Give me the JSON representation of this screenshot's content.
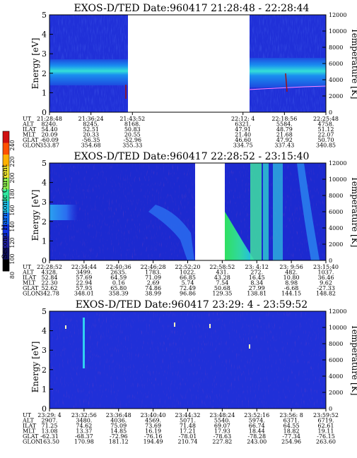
{
  "chart_data": [
    {
      "type": "heatmap",
      "title": "EXOS-D/TED    Date:960417  21:28:48 - 22:28:44",
      "ylabel": "Energy [eV]",
      "y2label": "Temperature [K]",
      "ylim": [
        0,
        5
      ],
      "yticks": [
        "0",
        "1",
        "2",
        "3",
        "4",
        "5"
      ],
      "y2lim": [
        0,
        12000
      ],
      "y2ticks": [
        "0",
        "2000",
        "4000",
        "6000",
        "8000",
        "10000",
        "12000"
      ],
      "data_gap": [
        0.385,
        0.7
      ],
      "emission_band": {
        "center_ev": 2.1,
        "half_width_ev": 0.5
      },
      "ephemeris": {
        "row_labels": [
          "UT",
          "ALT",
          "ILAT",
          "MLT",
          "GLAT",
          "GLON"
        ],
        "columns": [
          {
            "pos": 0.0,
            "values": [
              "21:28:48",
              "8240.",
              "54.40",
              "20.09",
              "-60.09",
              "353.87"
            ]
          },
          {
            "pos": 0.15,
            "values": [
              "21:36:24",
              "8245.",
              "52.51",
              "20.33",
              "-56.35",
              "354.68"
            ]
          },
          {
            "pos": 0.3,
            "values": [
              "21:43:52",
              "8168.",
              "50.83",
              "20.55",
              "-52.96",
              "355.33"
            ]
          },
          {
            "pos": 0.7,
            "values": [
              "22:12: 4",
              "6321.",
              "47.91",
              "21.40",
              "46.60",
              "334.75"
            ]
          },
          {
            "pos": 0.85,
            "values": [
              "22:18:56",
              "5584.",
              "48.79",
              "21.68",
              "47.92",
              "337.43"
            ]
          },
          {
            "pos": 1.0,
            "values": [
              "22:25:48",
              "4758.",
              "51.12",
              "22.07",
              "50.70",
              "340.85"
            ]
          }
        ]
      }
    },
    {
      "type": "heatmap",
      "title": "EXOS-D/TED    Date:960417  22:28:52 - 23:15:40",
      "ylabel": "Energy [eV]",
      "y2label": "Temperature [K]",
      "ylim": [
        0,
        5
      ],
      "yticks": [
        "0",
        "1",
        "2",
        "3",
        "4",
        "5"
      ],
      "y2lim": [
        0,
        12000
      ],
      "y2ticks": [
        "0",
        "2000",
        "4000",
        "6000",
        "8000",
        "10000",
        "12000"
      ],
      "data_gap": [
        0.5,
        0.62
      ],
      "ephemeris": {
        "row_labels": [
          "UT",
          "ALT",
          "ILAT",
          "MLT",
          "GLAT",
          "GLON"
        ],
        "columns": [
          {
            "pos": 0.0,
            "values": [
              "22:28:52",
              "4328.",
              "52.84",
              "22.30",
              "52.62",
              "342.78"
            ]
          },
          {
            "pos": 0.125,
            "values": [
              "22:34:44",
              "3499.",
              "57.69",
              "22.94",
              "57.93",
              "348.01"
            ]
          },
          {
            "pos": 0.25,
            "values": [
              "22:40:36",
              "2635.",
              "64.59",
              "0.16",
              "65.80",
              "358.39"
            ]
          },
          {
            "pos": 0.375,
            "values": [
              "22:46:28",
              "1783.",
              "71.09",
              "2.69",
              "74.86",
              "38.99"
            ]
          },
          {
            "pos": 0.5,
            "values": [
              "22:52:20",
              "1022.",
              "66.85",
              "5.74",
              "72.49",
              "96.86"
            ]
          },
          {
            "pos": 0.625,
            "values": [
              "22:58:52",
              "431.",
              "43.28",
              "7.54",
              "50.68",
              "129.35"
            ]
          },
          {
            "pos": 0.75,
            "values": [
              "23: 4:12",
              "272.",
              "16.45",
              "8.34",
              "27.99",
              "138.81"
            ]
          },
          {
            "pos": 0.875,
            "values": [
              "23: 9:56",
              "482.",
              "10.80",
              "8.98",
              "-6.68",
              "144.15"
            ]
          },
          {
            "pos": 1.0,
            "values": [
              "23:15:40",
              "1037.",
              "36.46",
              "9.62",
              "-27.33",
              "148.82"
            ]
          }
        ]
      }
    },
    {
      "type": "heatmap",
      "title": "EXOS-D/TED    Date:960417  23:29: 4 - 23:59:52",
      "ylabel": "Energy [eV]",
      "y2label": "Temperature [K]",
      "ylim": [
        0,
        5
      ],
      "yticks": [
        "0",
        "1",
        "2",
        "3",
        "4",
        "5"
      ],
      "y2lim": [
        0,
        12000
      ],
      "y2ticks": [
        "0",
        "2000",
        "4000",
        "6000",
        "8000",
        "10000",
        "12000"
      ],
      "ephemeris": {
        "row_labels": [
          "UT",
          "ALT",
          "ILAT",
          "MLT",
          "GLAT",
          "GLON"
        ],
        "columns": [
          {
            "pos": 0.0,
            "values": [
              "23:29: 4",
              "2907.",
              "71.25",
              "13.08",
              "-62.31",
              "163.50"
            ]
          },
          {
            "pos": 0.125,
            "values": [
              "23:32:56",
              "3480.",
              "74.62",
              "13.37",
              "-68.37",
              "170.98"
            ]
          },
          {
            "pos": 0.25,
            "values": [
              "23:36:48",
              "4036.",
              "75.09",
              "14.85",
              "-72.96",
              "181.12"
            ]
          },
          {
            "pos": 0.375,
            "values": [
              "23:40:40",
              "4569.",
              "73.69",
              "16.19",
              "-76.16",
              "194.49"
            ]
          },
          {
            "pos": 0.5,
            "values": [
              "23:44:32",
              "5071.",
              "71.48",
              "17.21",
              "-78.01",
              "210.74"
            ]
          },
          {
            "pos": 0.625,
            "values": [
              "23:48:24",
              "5540.",
              "69.07",
              "17.93",
              "-78.63",
              "227.82"
            ]
          },
          {
            "pos": 0.75,
            "values": [
              "23:52:16",
              "5974.",
              "66.74",
              "18.44",
              "-78.28",
              "243.00"
            ]
          },
          {
            "pos": 0.875,
            "values": [
              "23:56: 8",
              "6371.",
              "64.55",
              "18.82",
              "-77.34",
              "254.96"
            ]
          },
          {
            "pos": 1.0,
            "values": [
              "23:59:52",
              "6719.",
              "62.61",
              "19.11",
              "-76.15",
              "263.60"
            ]
          }
        ]
      }
    },
    {
      "type": "colorbar",
      "label": "Second Harmonic Current",
      "ticks": [
        "240",
        "220",
        "200",
        "180",
        "160",
        "140",
        "120",
        "100",
        "80"
      ],
      "colors": [
        "#d01010",
        "#ff5000",
        "#ffb000",
        "#f0e830",
        "#90f050",
        "#30e8a0",
        "#20c8f0",
        "#1070ff",
        "#1030e0",
        "#2020a0",
        "#101060",
        "#000000"
      ]
    }
  ]
}
